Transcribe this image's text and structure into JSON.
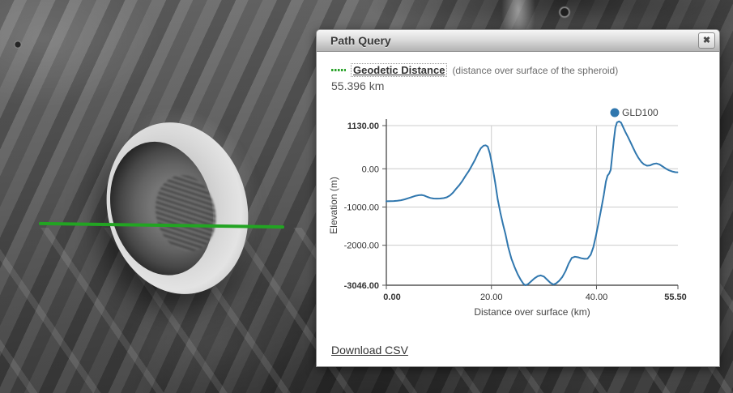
{
  "map": {
    "path_color": "#22a422"
  },
  "dialog": {
    "title": "Path Query",
    "close_icon": "✖",
    "measure_label": "Geodetic Distance",
    "measure_note": "(distance over surface of the spheroid)",
    "measure_value": "55.396 km",
    "swatch_color": "#2ba32b",
    "download_label": "Download CSV"
  },
  "chart_data": {
    "type": "line",
    "title": "",
    "xlabel": "Distance over surface (km)",
    "ylabel": "Elevation (m)",
    "xlim": [
      0,
      55.5
    ],
    "ylim": [
      -3046,
      1130
    ],
    "grid": true,
    "grid_color": "#cccccc",
    "axis_color": "#555555",
    "legend_position": "top-right",
    "xticks": [
      {
        "v": 0,
        "label": "0.00"
      },
      {
        "v": 20,
        "label": "20.00"
      },
      {
        "v": 40,
        "label": "40.00"
      },
      {
        "v": 55.5,
        "label": "55.50"
      }
    ],
    "yticks": [
      {
        "v": 1130,
        "label": "1130.00"
      },
      {
        "v": 0,
        "label": "0.00"
      },
      {
        "v": -1000,
        "label": "-1000.00"
      },
      {
        "v": -2000,
        "label": "-2000.00"
      },
      {
        "v": -3046,
        "label": "-3046.00"
      }
    ],
    "series": [
      {
        "name": "GLD100",
        "color": "#3077ae",
        "points": [
          [
            0,
            -850
          ],
          [
            0.7,
            -848
          ],
          [
            1.4,
            -843
          ],
          [
            2.1,
            -835
          ],
          [
            2.8,
            -822
          ],
          [
            3.5,
            -800
          ],
          [
            4.2,
            -770
          ],
          [
            4.9,
            -738
          ],
          [
            5.6,
            -705
          ],
          [
            6.2,
            -690
          ],
          [
            6.7,
            -685
          ],
          [
            7.2,
            -700
          ],
          [
            7.8,
            -735
          ],
          [
            8.4,
            -762
          ],
          [
            9,
            -778
          ],
          [
            9.6,
            -780
          ],
          [
            10.2,
            -778
          ],
          [
            10.9,
            -768
          ],
          [
            11.5,
            -745
          ],
          [
            12.1,
            -700
          ],
          [
            12.7,
            -620
          ],
          [
            13.3,
            -520
          ],
          [
            13.9,
            -424
          ],
          [
            14.5,
            -310
          ],
          [
            15.1,
            -180
          ],
          [
            15.7,
            -60
          ],
          [
            16.3,
            90
          ],
          [
            16.9,
            240
          ],
          [
            17.5,
            420
          ],
          [
            18,
            540
          ],
          [
            18.5,
            605
          ],
          [
            18.9,
            615
          ],
          [
            19.3,
            580
          ],
          [
            19.7,
            400
          ],
          [
            20.2,
            60
          ],
          [
            20.7,
            -350
          ],
          [
            21.2,
            -800
          ],
          [
            21.7,
            -1150
          ],
          [
            22.2,
            -1450
          ],
          [
            22.7,
            -1720
          ],
          [
            23.2,
            -2050
          ],
          [
            23.8,
            -2350
          ],
          [
            24.4,
            -2570
          ],
          [
            25,
            -2760
          ],
          [
            25.6,
            -2910
          ],
          [
            26.1,
            -3010
          ],
          [
            26.5,
            -3046
          ],
          [
            27,
            -3015
          ],
          [
            27.6,
            -2940
          ],
          [
            28.2,
            -2865
          ],
          [
            28.8,
            -2810
          ],
          [
            29.4,
            -2790
          ],
          [
            30,
            -2820
          ],
          [
            30.6,
            -2900
          ],
          [
            31.2,
            -2980
          ],
          [
            31.8,
            -3030
          ],
          [
            32.3,
            -3000
          ],
          [
            32.9,
            -2930
          ],
          [
            33.5,
            -2830
          ],
          [
            34.1,
            -2680
          ],
          [
            34.7,
            -2480
          ],
          [
            35.3,
            -2330
          ],
          [
            35.9,
            -2300
          ],
          [
            36.5,
            -2315
          ],
          [
            37.1,
            -2340
          ],
          [
            37.7,
            -2355
          ],
          [
            38.3,
            -2350
          ],
          [
            38.9,
            -2250
          ],
          [
            39.4,
            -2050
          ],
          [
            39.9,
            -1750
          ],
          [
            40.4,
            -1400
          ],
          [
            40.9,
            -1050
          ],
          [
            41.4,
            -680
          ],
          [
            41.8,
            -330
          ],
          [
            42.1,
            -180
          ],
          [
            42.4,
            -130
          ],
          [
            42.7,
            -30
          ],
          [
            43,
            350
          ],
          [
            43.3,
            750
          ],
          [
            43.6,
            1080
          ],
          [
            43.9,
            1215
          ],
          [
            44.3,
            1240
          ],
          [
            44.7,
            1205
          ],
          [
            45,
            1110
          ],
          [
            45.5,
            965
          ],
          [
            46,
            830
          ],
          [
            46.5,
            690
          ],
          [
            47,
            540
          ],
          [
            47.5,
            400
          ],
          [
            48,
            280
          ],
          [
            48.5,
            185
          ],
          [
            49,
            120
          ],
          [
            49.6,
            80
          ],
          [
            50.2,
            90
          ],
          [
            50.8,
            125
          ],
          [
            51.4,
            140
          ],
          [
            52,
            115
          ],
          [
            52.6,
            60
          ],
          [
            53.2,
            5
          ],
          [
            53.8,
            -40
          ],
          [
            54.4,
            -70
          ],
          [
            55,
            -88
          ],
          [
            55.4,
            -92
          ]
        ]
      }
    ]
  }
}
